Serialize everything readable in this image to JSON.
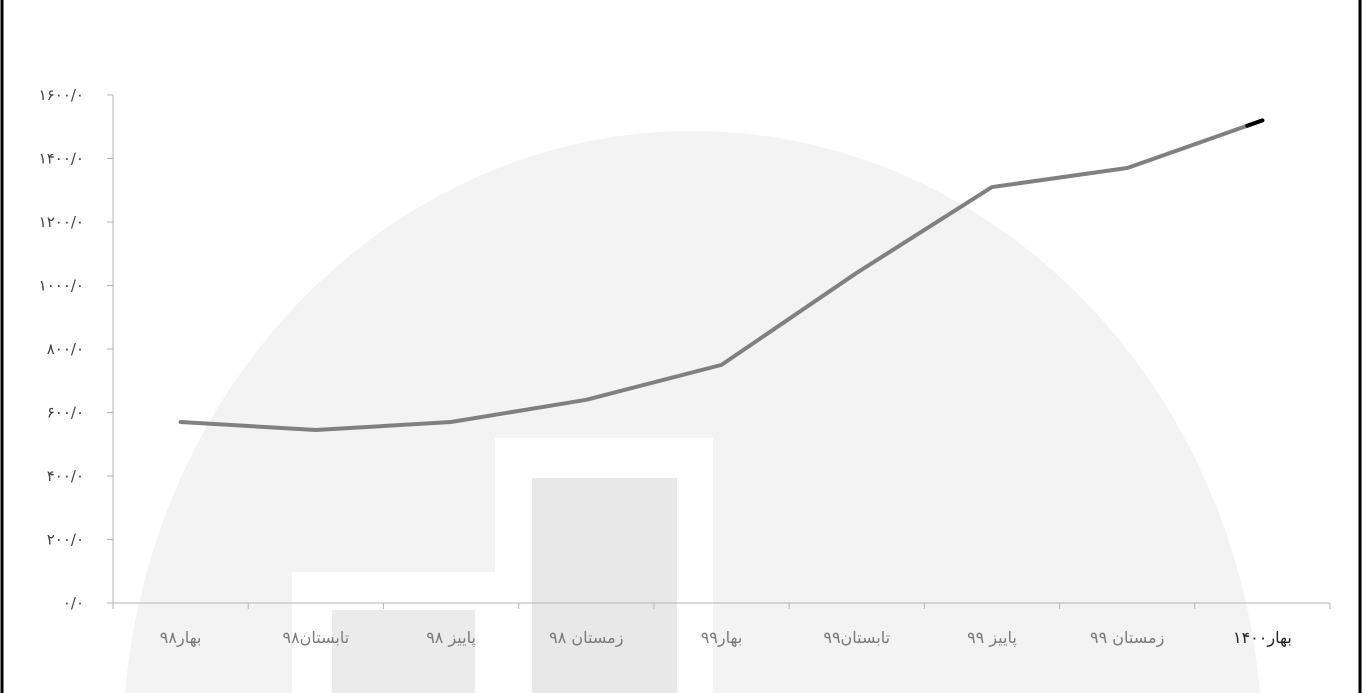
{
  "chart_data": {
    "type": "line",
    "title": "",
    "xlabel": "",
    "ylabel": "",
    "categories": [
      "بهار۹۸",
      "تابستان۹۸",
      "پاییز ۹۸",
      "زمستان ۹۸",
      "بهار۹۹",
      "تابستان۹۹",
      "پاییز ۹۹",
      "زمستان ۹۹",
      "بهار۱۴۰۰"
    ],
    "series": [
      {
        "values": [
          570,
          545,
          570,
          640,
          750,
          1040,
          1310,
          1370,
          1520
        ]
      }
    ],
    "ylim": [
      0,
      1600
    ],
    "yticks": [
      0,
      200,
      400,
      600,
      800,
      1000,
      1200,
      1400,
      1600
    ],
    "ytick_labels": [
      "۰/۰",
      "۲۰۰/۰",
      "۴۰۰/۰",
      "۶۰۰/۰",
      "۸۰۰/۰",
      "۱۰۰۰/۰",
      "۱۲۰۰/۰",
      "۱۴۰۰/۰",
      "۱۶۰۰/۰"
    ],
    "line_color": "#808080",
    "end_marker_color": "#000000",
    "grid": false,
    "legend": "none"
  }
}
